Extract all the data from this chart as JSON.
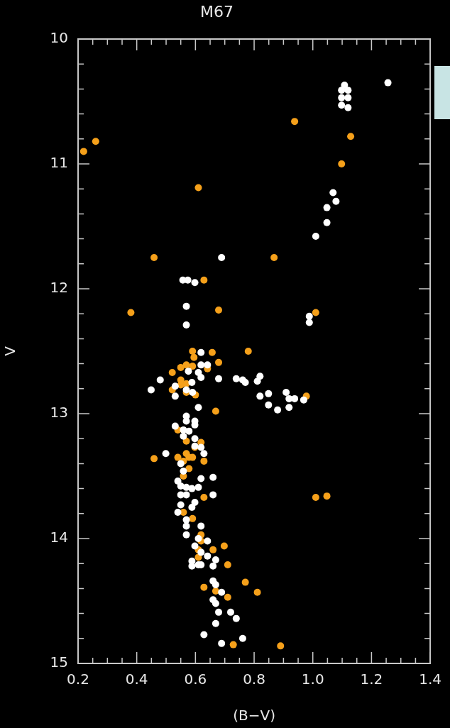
{
  "chart_data": {
    "type": "scatter",
    "title": "M67",
    "xlabel": "(B−V)",
    "ylabel": "V",
    "marker": "circle",
    "grid": false,
    "legend": false,
    "xlim": [
      0.2,
      1.4
    ],
    "ylim": [
      15,
      10
    ],
    "xticks": [
      {
        "value": 0.2,
        "label": "0.2"
      },
      {
        "value": 0.25,
        "label": null
      },
      {
        "value": 0.3,
        "label": null
      },
      {
        "value": 0.35,
        "label": null
      },
      {
        "value": 0.4,
        "label": "0.4"
      },
      {
        "value": 0.45,
        "label": null
      },
      {
        "value": 0.5,
        "label": null
      },
      {
        "value": 0.55,
        "label": null
      },
      {
        "value": 0.6,
        "label": "0.6"
      },
      {
        "value": 0.65,
        "label": null
      },
      {
        "value": 0.7,
        "label": null
      },
      {
        "value": 0.75,
        "label": null
      },
      {
        "value": 0.8,
        "label": "0.8"
      },
      {
        "value": 0.85,
        "label": null
      },
      {
        "value": 0.9,
        "label": null
      },
      {
        "value": 0.95,
        "label": null
      },
      {
        "value": 1.0,
        "label": "1.0"
      },
      {
        "value": 1.05,
        "label": null
      },
      {
        "value": 1.1,
        "label": null
      },
      {
        "value": 1.15,
        "label": null
      },
      {
        "value": 1.2,
        "label": "1.2"
      },
      {
        "value": 1.25,
        "label": null
      },
      {
        "value": 1.3,
        "label": null
      },
      {
        "value": 1.35,
        "label": null
      },
      {
        "value": 1.4,
        "label": "1.4"
      }
    ],
    "yticks": [
      10,
      {
        "value": 10.2,
        "label": null
      },
      {
        "value": 10.4,
        "label": null
      },
      {
        "value": 10.6,
        "label": null
      },
      {
        "value": 10.8,
        "label": null
      },
      11,
      {
        "value": 11.2,
        "label": null
      },
      {
        "value": 11.4,
        "label": null
      },
      {
        "value": 11.6,
        "label": null
      },
      {
        "value": 11.8,
        "label": null
      },
      12,
      {
        "value": 12.2,
        "label": null
      },
      {
        "value": 12.4,
        "label": null
      },
      {
        "value": 12.6,
        "label": null
      },
      {
        "value": 12.8,
        "label": null
      },
      13,
      {
        "value": 13.2,
        "label": null
      },
      {
        "value": 13.4,
        "label": null
      },
      {
        "value": 13.6,
        "label": null
      },
      {
        "value": 13.8,
        "label": null
      },
      14,
      {
        "value": 14.2,
        "label": null
      },
      {
        "value": 14.4,
        "label": null
      },
      {
        "value": 14.6,
        "label": null
      },
      {
        "value": 14.8,
        "label": null
      },
      15
    ],
    "series": [
      {
        "color": "#ffffff",
        "x": [
          1.108,
          1.098,
          1.12,
          1.098,
          1.12,
          1.098,
          1.12,
          1.256,
          1.069,
          1.079,
          1.048,
          1.048,
          1.01,
          0.689,
          0.557,
          0.574,
          0.598,
          0.569,
          0.988,
          0.988,
          0.569,
          0.619,
          0.619,
          0.641,
          0.576,
          0.61,
          0.619,
          0.48,
          0.679,
          0.588,
          0.531,
          0.449,
          0.569,
          0.531,
          0.59,
          0.739,
          0.761,
          0.77,
          0.811,
          0.82,
          0.82,
          0.849,
          0.849,
          0.88,
          0.909,
          0.919,
          0.938,
          0.919,
          0.969,
          0.61,
          0.569,
          0.569,
          0.598,
          0.598,
          0.531,
          0.559,
          0.578,
          0.559,
          0.598,
          0.598,
          0.619,
          0.499,
          0.629,
          0.55,
          0.559,
          0.619,
          0.66,
          0.54,
          0.55,
          0.569,
          0.588,
          0.61,
          0.55,
          0.569,
          0.66,
          0.55,
          0.598,
          0.588,
          0.54,
          0.569,
          0.569,
          0.619,
          0.569,
          0.61,
          0.641,
          0.598,
          0.619,
          0.641,
          0.669,
          0.588,
          0.61,
          0.619,
          0.588,
          0.66,
          0.66,
          0.669,
          0.689,
          0.66,
          0.669,
          0.679,
          0.72,
          0.739,
          0.669,
          0.629,
          0.761,
          0.689
        ],
        "values": [
          10.37,
          10.41,
          10.41,
          10.47,
          10.47,
          10.53,
          10.55,
          10.35,
          11.23,
          11.3,
          11.35,
          11.47,
          11.58,
          11.75,
          11.93,
          11.93,
          11.95,
          12.14,
          12.22,
          12.27,
          12.29,
          12.51,
          12.61,
          12.61,
          12.66,
          12.67,
          12.71,
          12.73,
          12.72,
          12.75,
          12.78,
          12.81,
          12.81,
          12.86,
          12.83,
          12.72,
          12.73,
          12.75,
          12.74,
          12.7,
          12.86,
          12.84,
          12.93,
          12.97,
          12.83,
          12.88,
          12.88,
          12.95,
          12.89,
          12.95,
          13.02,
          13.06,
          13.06,
          13.09,
          13.1,
          13.13,
          13.14,
          13.18,
          13.2,
          13.26,
          13.27,
          13.32,
          13.32,
          13.4,
          13.46,
          13.52,
          13.51,
          13.54,
          13.58,
          13.59,
          13.6,
          13.59,
          13.65,
          13.65,
          13.65,
          13.73,
          13.71,
          13.75,
          13.79,
          13.85,
          13.9,
          13.9,
          13.97,
          14.0,
          14.02,
          14.06,
          14.11,
          14.14,
          14.17,
          14.18,
          14.21,
          14.21,
          14.22,
          14.22,
          14.34,
          14.37,
          14.43,
          14.49,
          14.52,
          14.59,
          14.59,
          14.64,
          14.68,
          14.77,
          14.8,
          14.84
        ]
      },
      {
        "color": "#f5a01a",
        "x": [
          0.938,
          1.129,
          1.098,
          0.26,
          0.219,
          0.61,
          0.459,
          0.868,
          0.629,
          0.679,
          0.38,
          1.01,
          0.59,
          0.595,
          0.657,
          0.78,
          0.679,
          0.641,
          0.55,
          0.569,
          0.59,
          0.521,
          0.55,
          0.55,
          0.569,
          0.521,
          0.569,
          0.6,
          0.978,
          0.669,
          0.54,
          0.569,
          0.619,
          0.598,
          0.459,
          0.54,
          0.569,
          0.559,
          0.578,
          0.59,
          0.629,
          0.578,
          0.559,
          0.629,
          1.01,
          1.048,
          0.559,
          0.59,
          0.619,
          0.619,
          0.698,
          0.61,
          0.66,
          0.61,
          0.71,
          0.77,
          0.629,
          0.669,
          0.71,
          0.811,
          0.729,
          0.89
        ],
        "values": [
          10.66,
          10.78,
          11.0,
          10.82,
          10.9,
          11.19,
          11.75,
          11.75,
          11.93,
          12.17,
          12.19,
          12.19,
          12.5,
          12.55,
          12.51,
          12.5,
          12.59,
          12.64,
          12.63,
          12.61,
          12.62,
          12.67,
          12.73,
          12.77,
          12.76,
          12.81,
          12.83,
          12.85,
          12.86,
          12.98,
          13.13,
          13.22,
          13.23,
          13.27,
          13.36,
          13.35,
          13.32,
          13.38,
          13.35,
          13.35,
          13.38,
          13.44,
          13.5,
          13.67,
          13.67,
          13.66,
          13.79,
          13.84,
          13.97,
          14.02,
          14.06,
          14.09,
          14.09,
          14.15,
          14.21,
          14.35,
          14.39,
          14.42,
          14.47,
          14.43,
          14.85,
          14.86
        ]
      }
    ]
  }
}
